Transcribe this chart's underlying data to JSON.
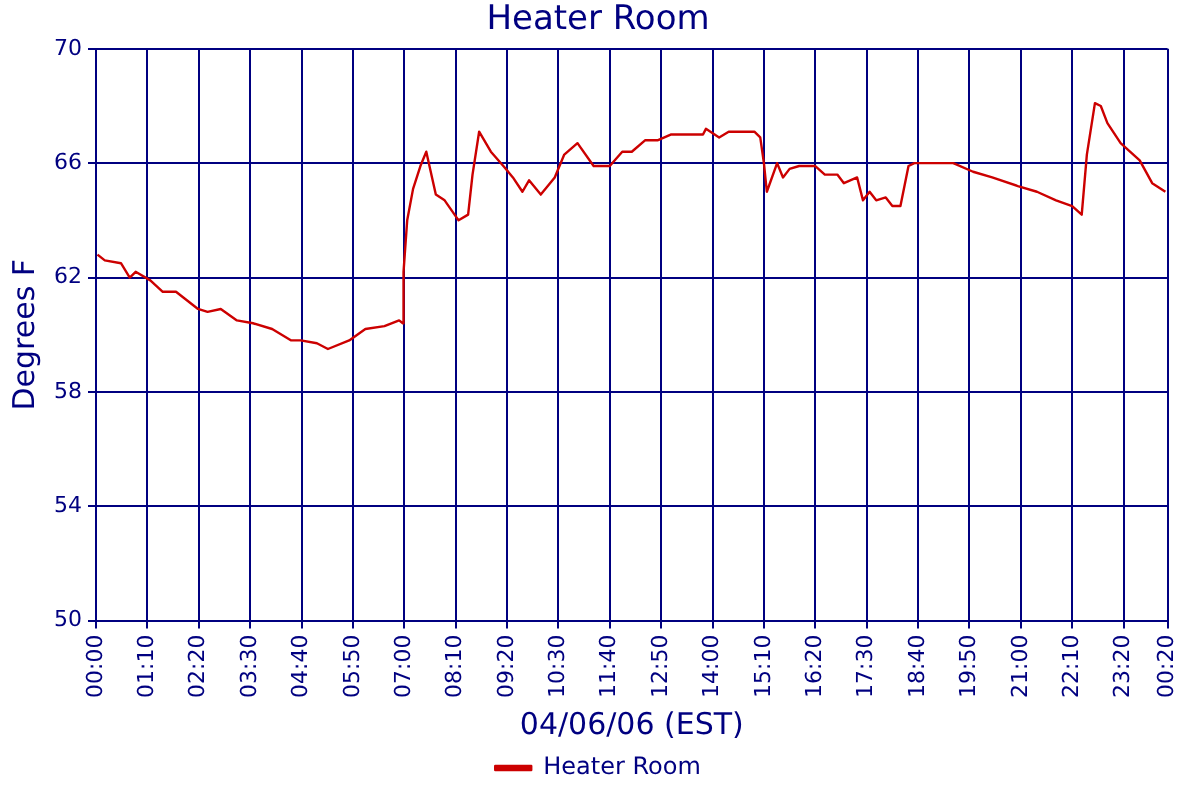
{
  "chart_data": {
    "type": "line",
    "title": "Heater Room",
    "xlabel": "04/06/06 (EST)",
    "ylabel": "Degrees F",
    "xlim": [
      "--04-06T00:00",
      "--04-07T00:20"
    ],
    "xticks": [
      {
        "value": "--04-06T00:00",
        "label": "00:00"
      },
      {
        "value": "--04-06T01:10",
        "label": "01:10"
      },
      {
        "value": "--04-06T02:20",
        "label": "02:20"
      },
      {
        "value": "--04-06T03:30",
        "label": "03:30"
      },
      {
        "value": "--04-06T04:40",
        "label": "04:40"
      },
      {
        "value": "--04-06T05:50",
        "label": "05:50"
      },
      {
        "value": "--04-06T07:00",
        "label": "07:00"
      },
      {
        "value": "--04-06T08:10",
        "label": "08:10"
      },
      {
        "value": "--04-06T09:20",
        "label": "09:20"
      },
      {
        "value": "--04-06T10:30",
        "label": "10:30"
      },
      {
        "value": "--04-06T11:40",
        "label": "11:40"
      },
      {
        "value": "--04-06T12:50",
        "label": "12:50"
      },
      {
        "value": "--04-06T14:00",
        "label": "14:00"
      },
      {
        "value": "--04-06T15:10",
        "label": "15:10"
      },
      {
        "value": "--04-06T16:20",
        "label": "16:20"
      },
      {
        "value": "--04-06T17:30",
        "label": "17:30"
      },
      {
        "value": "--04-06T18:40",
        "label": "18:40"
      },
      {
        "value": "--04-06T19:50",
        "label": "19:50"
      },
      {
        "value": "--04-06T21:00",
        "label": "21:00"
      },
      {
        "value": "--04-06T22:10",
        "label": "22:10"
      },
      {
        "value": "--04-06T23:20",
        "label": "23:20"
      },
      {
        "value": "--04-07T00:20",
        "label": "00:20"
      }
    ],
    "ylim": [
      50,
      70
    ],
    "yticks": [
      50,
      54,
      58,
      62,
      66,
      70
    ],
    "grid": true,
    "legend": "bottom",
    "marker": "none",
    "line_style": "solid",
    "series": [
      {
        "name": "Heater Room",
        "color": "#cc0000",
        "x": [
          "--04-06T00:02",
          "--04-06T00:12",
          "--04-06T00:34",
          "--04-06T00:46",
          "--04-06T00:54",
          "--04-06T01:14",
          "--04-06T01:31",
          "--04-06T01:49",
          "--04-06T02:19",
          "--04-06T02:32",
          "--04-06T02:50",
          "--04-06T03:12",
          "--04-06T03:34",
          "--04-06T04:00",
          "--04-06T04:26",
          "--04-06T04:39",
          "--04-06T05:01",
          "--04-06T05:16",
          "--04-06T05:45",
          "--04-06T06:07",
          "--04-06T06:33",
          "--04-06T06:53",
          "--04-06T06:58",
          "--04-06T06:59",
          "--04-06T07:04",
          "--04-06T07:12",
          "--04-06T07:22",
          "--04-06T07:30",
          "--04-06T07:43",
          "--04-06T07:55",
          "--04-06T08:14",
          "--04-06T08:27",
          "--04-06T08:33",
          "--04-06T08:42",
          "--04-06T08:58",
          "--04-06T09:15",
          "--04-06T09:28",
          "--04-06T09:41",
          "--04-06T09:50",
          "--04-06T10:06",
          "--04-06T10:25",
          "--04-06T10:38",
          "--04-06T10:56",
          "--04-06T11:18",
          "--04-06T11:40",
          "--04-06T11:57",
          "--04-06T12:10",
          "--04-06T12:28",
          "--04-06T12:45",
          "--04-06T13:03",
          "--04-06T13:20",
          "--04-06T13:47",
          "--04-06T13:51",
          "--04-06T14:09",
          "--04-06T14:22",
          "--04-06T14:57",
          "--04-06T15:05",
          "--04-06T15:10",
          "--04-06T15:14",
          "--04-06T15:28",
          "--04-06T15:36",
          "--04-06T15:45",
          "--04-06T15:58",
          "--04-06T16:20",
          "--04-06T16:33",
          "--04-06T16:50",
          "--04-06T16:59",
          "--04-06T17:17",
          "--04-06T17:25",
          "--04-06T17:34",
          "--04-06T17:43",
          "--04-06T17:56",
          "--04-06T18:05",
          "--04-06T18:16",
          "--04-06T18:27",
          "--04-06T18:35",
          "--04-06T19:28",
          "--04-06T19:55",
          "--04-06T20:21",
          "--04-06T20:56",
          "--04-06T21:22",
          "--04-06T21:48",
          "--04-06T22:10",
          "--04-06T22:23",
          "--04-06T22:30",
          "--04-06T22:41",
          "--04-06T22:49",
          "--04-06T22:58",
          "--04-06T23:16",
          "--04-06T23:42",
          "--04-06T23:59",
          "--04-07T00:17"
        ],
        "values": [
          62.8,
          62.6,
          62.5,
          62.0,
          62.2,
          61.9,
          61.5,
          61.5,
          60.9,
          60.8,
          60.9,
          60.5,
          60.4,
          60.2,
          59.8,
          59.8,
          59.7,
          59.5,
          59.8,
          60.2,
          60.3,
          60.5,
          60.4,
          62.2,
          64.0,
          65.1,
          65.9,
          66.4,
          64.9,
          64.7,
          64.0,
          64.2,
          65.6,
          67.1,
          66.4,
          65.9,
          65.5,
          65.0,
          65.4,
          64.9,
          65.5,
          66.3,
          66.7,
          65.9,
          65.9,
          66.4,
          66.4,
          66.8,
          66.8,
          67.0,
          67.0,
          67.0,
          67.2,
          66.9,
          67.1,
          67.1,
          66.9,
          66.0,
          65.0,
          66.0,
          65.5,
          65.8,
          65.9,
          65.9,
          65.6,
          65.6,
          65.3,
          65.5,
          64.7,
          65.0,
          64.7,
          64.8,
          64.5,
          64.5,
          65.9,
          66.0,
          66.0,
          65.7,
          65.5,
          65.2,
          65.0,
          64.7,
          64.5,
          64.2,
          66.3,
          68.1,
          68.0,
          67.4,
          66.7,
          66.1,
          65.3,
          65.0
        ]
      }
    ]
  }
}
